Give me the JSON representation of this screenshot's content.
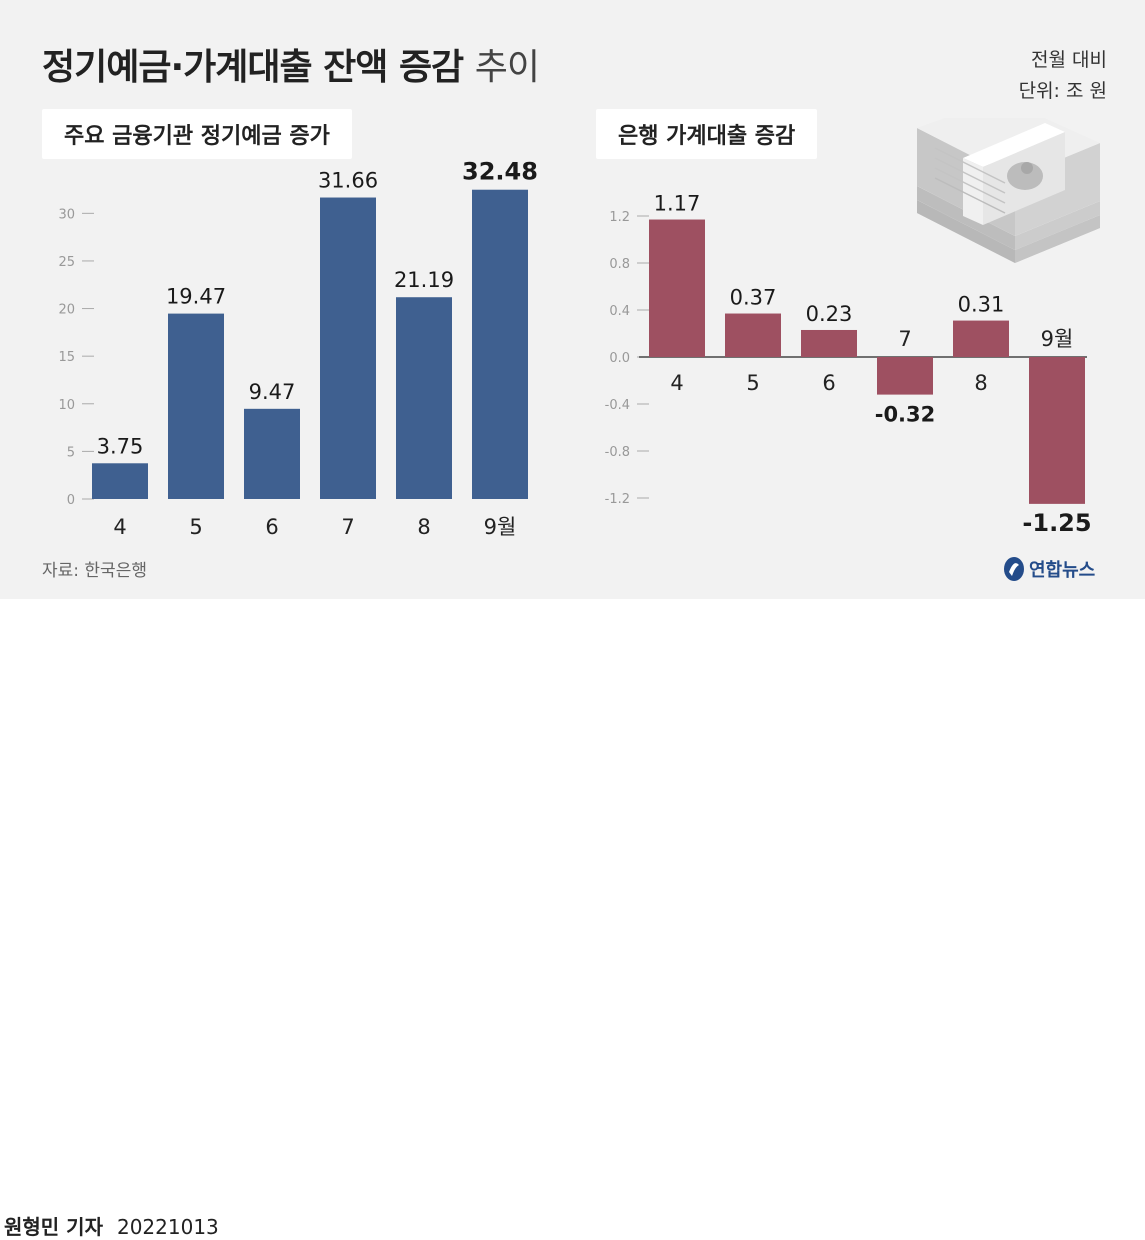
{
  "title_main": "정기예금·가계대출 잔액 증감",
  "title_light": "추이",
  "unit_line1": "전월 대비",
  "unit_line2": "단위: 조 원",
  "source": "자료: 한국은행",
  "logo_text": "연합뉴스",
  "byline_name": "원형민 기자",
  "byline_date": "20221013",
  "colors": {
    "deposit_bar": "#3f6090",
    "loan_bar": "#9e5061",
    "panel": "#f2f2f2"
  },
  "chart_data": [
    {
      "type": "bar",
      "title": "주요 금융기관 정기예금 증가",
      "categories": [
        "4",
        "5",
        "6",
        "7",
        "8",
        "9월"
      ],
      "values": [
        3.75,
        19.47,
        9.47,
        31.66,
        21.19,
        32.48
      ],
      "value_labels": [
        "3.75",
        "19.47",
        "9.47",
        "31.66",
        "21.19",
        "32.48"
      ],
      "yticks": [
        "0",
        "5",
        "10",
        "15",
        "20",
        "25",
        "30"
      ],
      "ylim": [
        0,
        33.5
      ],
      "grid": false
    },
    {
      "type": "bar",
      "title": "은행 가계대출 증감",
      "categories": [
        "4",
        "5",
        "6",
        "7",
        "8",
        "9월"
      ],
      "values": [
        1.17,
        0.37,
        0.23,
        -0.32,
        0.31,
        -1.25
      ],
      "value_labels": [
        "1.17",
        "0.37",
        "0.23",
        "-0.32",
        "0.31",
        "-1.25"
      ],
      "yticks": [
        "1.2",
        "0.8",
        "0.4",
        "0.0",
        "-0.4",
        "-0.8",
        "-1.2"
      ],
      "ylim": [
        -1.25,
        1.25
      ],
      "grid": false
    }
  ]
}
